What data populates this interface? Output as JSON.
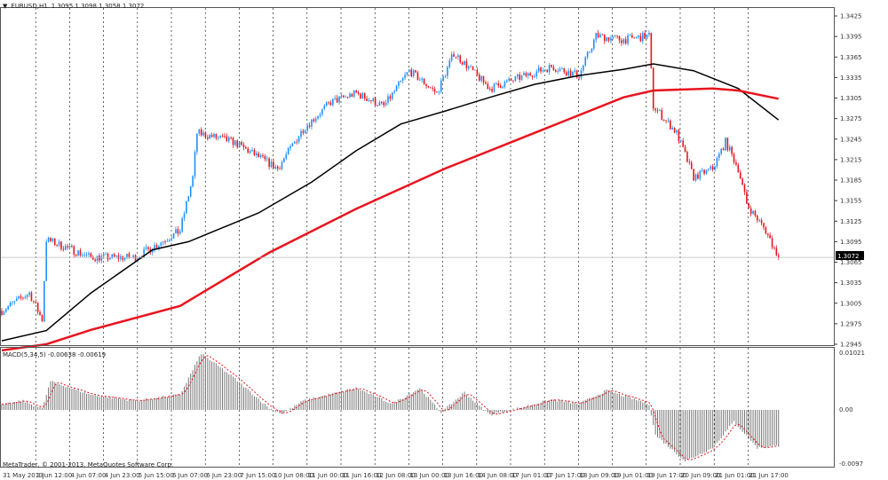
{
  "header": {
    "symbol": "EURUSD,H1",
    "ohlc": "1.3095 1.3098 1.3058 1.3072"
  },
  "macd_header": "MACD(5,34,5) -0.00638 -0.00619",
  "copyright": "MetaTrader, © 2001-2013, MetaQuotes Software Corp.",
  "colors": {
    "bull": "#1e90ff",
    "bear": "#e8141e",
    "ma_fast": "#000000",
    "ma_slow": "#e8141e",
    "grid": "#000000",
    "hist": "#777777",
    "signal": "#e8141e"
  },
  "chart_data": [
    {
      "type": "candlestick",
      "title": "EURUSD,H1",
      "ylim": [
        1.2935,
        1.344
      ],
      "y_ticks": [
        "1.3425",
        "1.3395",
        "1.3365",
        "1.3335",
        "1.3305",
        "1.3275",
        "1.3245",
        "1.3215",
        "1.3185",
        "1.3155",
        "1.3125",
        "1.3095",
        "1.3065",
        "1.3035",
        "1.3005",
        "1.2975",
        "1.2945"
      ],
      "current_price": "1.3072",
      "x_ticks": [
        "31 May 2013",
        "3 Jun 12:00",
        "4 Jun 07:00",
        "4 Jun 23:00",
        "5 Jun 15:00",
        "6 Jun 07:00",
        "6 Jun 23:00",
        "7 Jun 15:00",
        "10 Jun 08:00",
        "11 Jun 00:00",
        "11 Jun 16:00",
        "12 Jun 08:00",
        "13 Jun 00:00",
        "13 Jun 16:00",
        "14 Jun 08:00",
        "17 Jun 01:00",
        "17 Jun 17:00",
        "18 Jun 09:00",
        "19 Jun 01:00",
        "19 Jun 17:00",
        "20 Jun 09:00",
        "21 Jun 01:00",
        "21 Jun 17:00"
      ],
      "x_unit": "bar index",
      "close_samples": [
        [
          0,
          1.2994
        ],
        [
          13,
          1.302
        ],
        [
          19,
          1.2981
        ],
        [
          21,
          1.3098
        ],
        [
          42,
          1.3072
        ],
        [
          63,
          1.3072
        ],
        [
          84,
          1.3111
        ],
        [
          90,
          1.3189
        ],
        [
          92,
          1.3254
        ],
        [
          109,
          1.3241
        ],
        [
          130,
          1.3202
        ],
        [
          142,
          1.326
        ],
        [
          155,
          1.3299
        ],
        [
          167,
          1.3312
        ],
        [
          180,
          1.3293
        ],
        [
          192,
          1.3345
        ],
        [
          205,
          1.3312
        ],
        [
          213,
          1.3371
        ],
        [
          230,
          1.3319
        ],
        [
          247,
          1.3338
        ],
        [
          259,
          1.3351
        ],
        [
          272,
          1.3338
        ],
        [
          280,
          1.3396
        ],
        [
          293,
          1.339
        ],
        [
          305,
          1.3396
        ],
        [
          307,
          1.3293
        ],
        [
          318,
          1.3254
        ],
        [
          326,
          1.3189
        ],
        [
          335,
          1.3202
        ],
        [
          341,
          1.3241
        ],
        [
          347,
          1.3202
        ],
        [
          351,
          1.315
        ],
        [
          360,
          1.3111
        ],
        [
          366,
          1.3072
        ]
      ],
      "ma_fast": [
        [
          0,
          1.295
        ],
        [
          21,
          1.2965
        ],
        [
          42,
          1.302
        ],
        [
          71,
          1.3083
        ],
        [
          88,
          1.3095
        ],
        [
          121,
          1.3137
        ],
        [
          146,
          1.3182
        ],
        [
          167,
          1.3228
        ],
        [
          188,
          1.3267
        ],
        [
          209,
          1.3286
        ],
        [
          230,
          1.3306
        ],
        [
          251,
          1.3325
        ],
        [
          272,
          1.3338
        ],
        [
          293,
          1.3347
        ],
        [
          307,
          1.3355
        ],
        [
          326,
          1.3345
        ],
        [
          347,
          1.3319
        ],
        [
          366,
          1.3273
        ]
      ],
      "ma_slow": [
        [
          0,
          1.2936
        ],
        [
          21,
          1.2945
        ],
        [
          42,
          1.2966
        ],
        [
          84,
          1.3001
        ],
        [
          126,
          1.3079
        ],
        [
          167,
          1.3143
        ],
        [
          209,
          1.3202
        ],
        [
          251,
          1.3254
        ],
        [
          293,
          1.3306
        ],
        [
          307,
          1.3316
        ],
        [
          335,
          1.3319
        ],
        [
          347,
          1.3316
        ],
        [
          366,
          1.3304
        ]
      ]
    },
    {
      "type": "bar",
      "title": "MACD(5,34,5)",
      "ylim": [
        -0.0097,
        0.01021
      ],
      "y_ticks": [
        "0.01021",
        "0.00",
        "-0.0097"
      ],
      "histogram_samples": [
        [
          0,
          0.0008
        ],
        [
          10,
          0.0015
        ],
        [
          19,
          0.0002
        ],
        [
          23,
          0.0047
        ],
        [
          42,
          0.0025
        ],
        [
          63,
          0.0015
        ],
        [
          84,
          0.0025
        ],
        [
          94,
          0.0093
        ],
        [
          109,
          0.0054
        ],
        [
          126,
          0.0003
        ],
        [
          132,
          -0.0007
        ],
        [
          142,
          0.0015
        ],
        [
          167,
          0.0036
        ],
        [
          184,
          0.001
        ],
        [
          197,
          0.0036
        ],
        [
          207,
          -0.0005
        ],
        [
          218,
          0.0029
        ],
        [
          230,
          -0.0009
        ],
        [
          247,
          0.0006
        ],
        [
          259,
          0.0017
        ],
        [
          272,
          0.001
        ],
        [
          285,
          0.0032
        ],
        [
          305,
          0.001
        ],
        [
          308,
          -0.0045
        ],
        [
          322,
          -0.0092
        ],
        [
          335,
          -0.0068
        ],
        [
          345,
          -0.0021
        ],
        [
          356,
          -0.0068
        ],
        [
          366,
          -0.0064
        ]
      ]
    }
  ]
}
